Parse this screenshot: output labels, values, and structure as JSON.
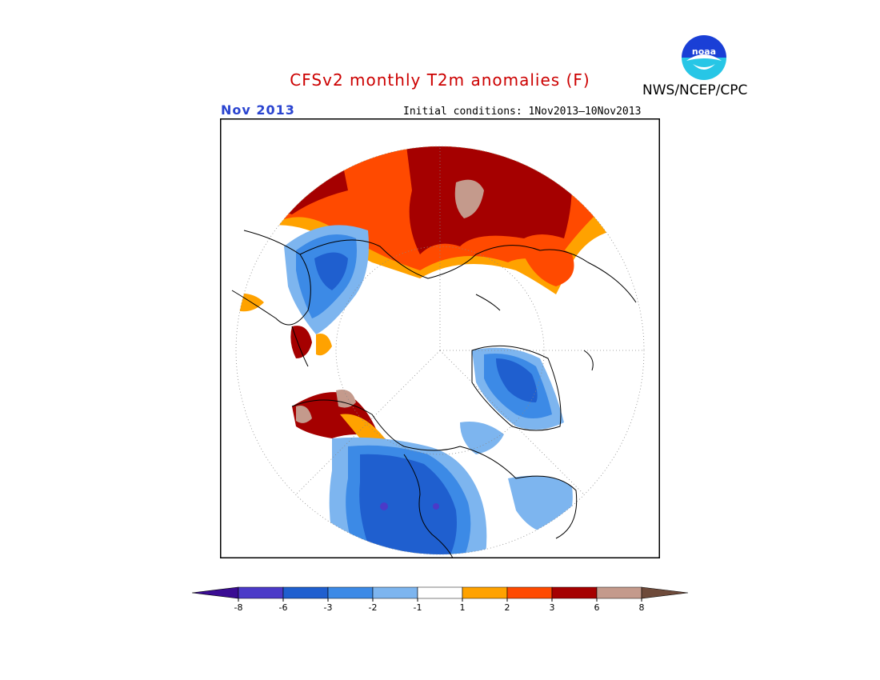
{
  "header": {
    "title": "CFSv2 monthly T2m anomalies (F)",
    "title_color": "#cc0000",
    "org": "NWS/NCEP/CPC",
    "period": "Nov 2013",
    "period_color": "#2a44d0",
    "initial_conditions": "Initial conditions: 1Nov2013–10Nov2013",
    "logo_icon": "noaa-logo-icon"
  },
  "map": {
    "projection": "polar-stereographic-north",
    "frame_color": "#000000",
    "coastline_color": "#000000",
    "graticule": "dotted"
  },
  "legend": {
    "bins": [
      {
        "color": "#3a0c93",
        "type": "arrow-left"
      },
      {
        "color": "#4b3ac8"
      },
      {
        "color": "#1f5fcf"
      },
      {
        "color": "#3c8ae6"
      },
      {
        "color": "#7db5ef"
      },
      {
        "color": "#ffffff"
      },
      {
        "color": "#ffa200"
      },
      {
        "color": "#ff4a00"
      },
      {
        "color": "#a50000"
      },
      {
        "color": "#c49a8c"
      },
      {
        "color": "#6e4a3a",
        "type": "arrow-right"
      }
    ],
    "ticks": [
      "-8",
      "-6",
      "-3",
      "-2",
      "-1",
      "1",
      "2",
      "3",
      "6",
      "8"
    ]
  }
}
